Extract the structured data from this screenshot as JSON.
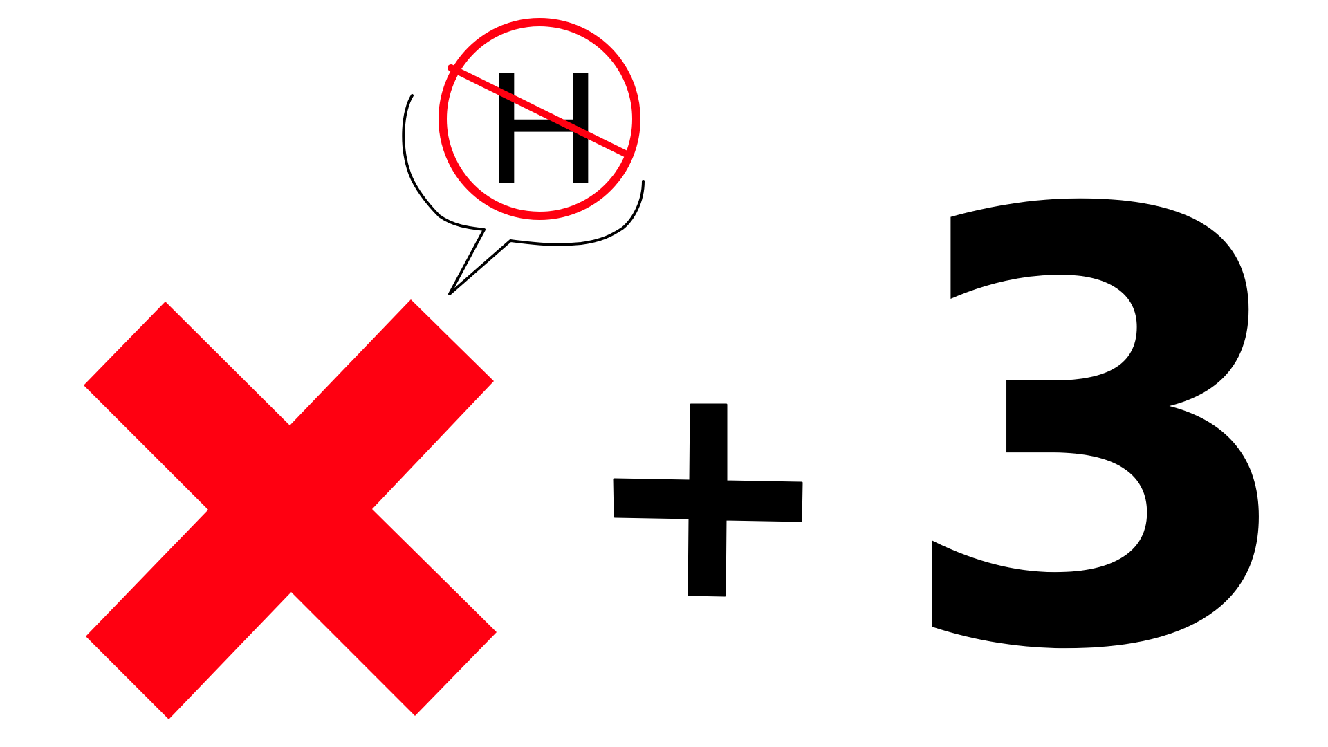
{
  "speech_bubble": {
    "crossed_out_letter": "H",
    "prohibition_color": "#ff0011"
  },
  "expression": {
    "cross_mark_color": "#ff0011",
    "operator_icon": "plus-icon",
    "number": "3",
    "ink_color": "#000000"
  }
}
